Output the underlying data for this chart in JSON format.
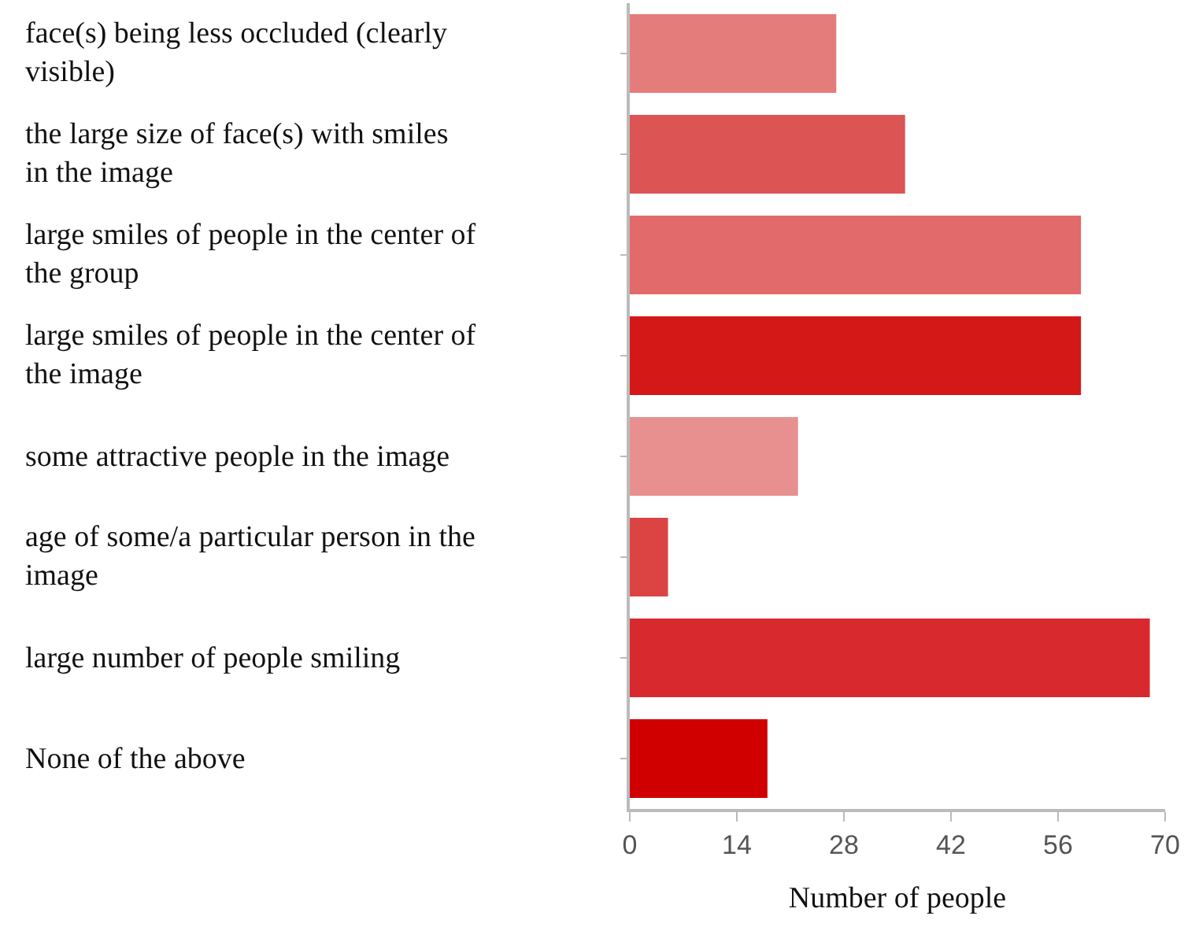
{
  "chart_data": {
    "type": "bar",
    "orientation": "horizontal",
    "xlabel": "Number of people",
    "categories": [
      "face(s) being less occluded (clearly visible)",
      "the large size of face(s) with smiles in the image",
      "large smiles of people in the center of the group",
      "large smiles of people in the center of the image",
      "some attractive people in the image",
      "age of some/a particular person in the image",
      "large number of people smiling",
      "None of the above"
    ],
    "values": [
      27,
      36,
      59,
      59,
      22,
      5,
      68,
      18
    ],
    "colors": [
      "#e57c7c",
      "#dc5454",
      "#e26a6a",
      "#d41818",
      "#e89090",
      "#dc4444",
      "#d82a2e",
      "#d00000"
    ],
    "xlim": [
      0,
      70
    ],
    "xticks": [
      0,
      14,
      28,
      42,
      56,
      70
    ],
    "grid": false
  }
}
